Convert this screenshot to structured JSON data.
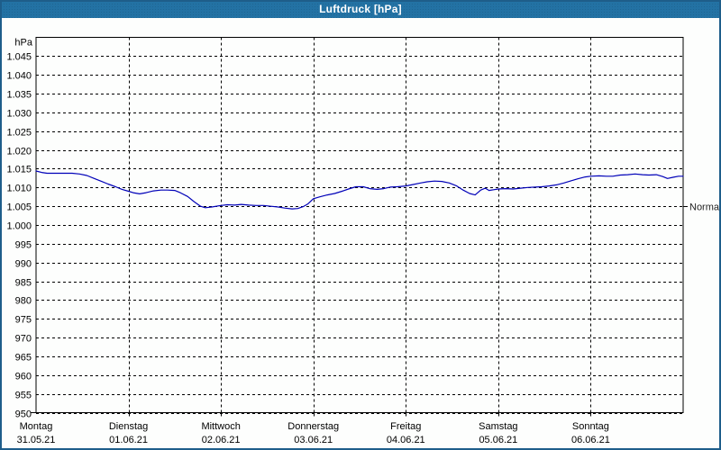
{
  "window": {
    "title": "Luftdruck [hPa]"
  },
  "colors": {
    "titlebar_bg": "#2372a4",
    "window_border": "#1e5d8a",
    "plot_border": "#000000",
    "grid": "#000000",
    "text": "#000000",
    "title_text": "#ffffff",
    "line": "#0000b8"
  },
  "chart_data": {
    "type": "line",
    "title": "Luftdruck [hPa]",
    "unit_label": "hPa",
    "grid": "dashed",
    "legend_position": "none",
    "y_axis": {
      "min": 950,
      "max": 1050,
      "tick_step": 5,
      "ticks": [
        {
          "value": 1045,
          "label": "1.045"
        },
        {
          "value": 1040,
          "label": "1.040"
        },
        {
          "value": 1035,
          "label": "1.035"
        },
        {
          "value": 1030,
          "label": "1.030"
        },
        {
          "value": 1025,
          "label": "1.025"
        },
        {
          "value": 1020,
          "label": "1.020"
        },
        {
          "value": 1015,
          "label": "1.015"
        },
        {
          "value": 1010,
          "label": "1.010"
        },
        {
          "value": 1005,
          "label": "1.005"
        },
        {
          "value": 1000,
          "label": "1.000"
        },
        {
          "value": 995,
          "label": "995"
        },
        {
          "value": 990,
          "label": "990"
        },
        {
          "value": 985,
          "label": "985"
        },
        {
          "value": 980,
          "label": "980"
        },
        {
          "value": 975,
          "label": "975"
        },
        {
          "value": 970,
          "label": "970"
        },
        {
          "value": 965,
          "label": "965"
        },
        {
          "value": 960,
          "label": "960"
        },
        {
          "value": 955,
          "label": "955"
        },
        {
          "value": 950,
          "label": "950"
        }
      ]
    },
    "x_axis": {
      "days": [
        {
          "name": "Montag",
          "date": "31.05.21"
        },
        {
          "name": "Dienstag",
          "date": "01.06.21"
        },
        {
          "name": "Mittwoch",
          "date": "02.06.21"
        },
        {
          "name": "Donnerstag",
          "date": "03.06.21"
        },
        {
          "name": "Freitag",
          "date": "04.06.21"
        },
        {
          "name": "Samstag",
          "date": "05.06.21"
        },
        {
          "name": "Sonntag",
          "date": "06.06.21"
        }
      ]
    },
    "normal_marker": {
      "label": "Normal",
      "value": 1005
    },
    "series": [
      {
        "name": "Luftdruck",
        "color": "#0000b8",
        "x_unit": "days_from_start",
        "points": [
          [
            0.0,
            1014.4
          ],
          [
            0.06,
            1014.0
          ],
          [
            0.12,
            1013.8
          ],
          [
            0.2,
            1013.8
          ],
          [
            0.3,
            1013.8
          ],
          [
            0.39,
            1013.8
          ],
          [
            0.47,
            1013.6
          ],
          [
            0.55,
            1013.2
          ],
          [
            0.62,
            1012.5
          ],
          [
            0.7,
            1011.7
          ],
          [
            0.78,
            1010.9
          ],
          [
            0.86,
            1010.2
          ],
          [
            0.93,
            1009.5
          ],
          [
            1.0,
            1009.0
          ],
          [
            1.05,
            1008.6
          ],
          [
            1.12,
            1008.3
          ],
          [
            1.19,
            1008.6
          ],
          [
            1.27,
            1009.1
          ],
          [
            1.35,
            1009.3
          ],
          [
            1.42,
            1009.3
          ],
          [
            1.5,
            1009.2
          ],
          [
            1.56,
            1008.6
          ],
          [
            1.64,
            1007.6
          ],
          [
            1.71,
            1006.2
          ],
          [
            1.78,
            1005.0
          ],
          [
            1.83,
            1004.6
          ],
          [
            1.9,
            1004.8
          ],
          [
            2.0,
            1005.2
          ],
          [
            2.07,
            1005.4
          ],
          [
            2.15,
            1005.3
          ],
          [
            2.22,
            1005.5
          ],
          [
            2.3,
            1005.3
          ],
          [
            2.38,
            1005.2
          ],
          [
            2.46,
            1005.2
          ],
          [
            2.54,
            1005.0
          ],
          [
            2.62,
            1004.8
          ],
          [
            2.69,
            1004.5
          ],
          [
            2.77,
            1004.3
          ],
          [
            2.83,
            1004.4
          ],
          [
            2.89,
            1004.9
          ],
          [
            2.94,
            1005.6
          ],
          [
            3.0,
            1007.0
          ],
          [
            3.07,
            1007.5
          ],
          [
            3.15,
            1008.0
          ],
          [
            3.23,
            1008.4
          ],
          [
            3.31,
            1009.0
          ],
          [
            3.38,
            1009.6
          ],
          [
            3.46,
            1010.2
          ],
          [
            3.54,
            1010.2
          ],
          [
            3.61,
            1009.7
          ],
          [
            3.69,
            1009.5
          ],
          [
            3.76,
            1009.7
          ],
          [
            3.83,
            1010.1
          ],
          [
            3.91,
            1010.2
          ],
          [
            4.0,
            1010.4
          ],
          [
            4.08,
            1010.8
          ],
          [
            4.16,
            1011.2
          ],
          [
            4.23,
            1011.5
          ],
          [
            4.31,
            1011.7
          ],
          [
            4.39,
            1011.6
          ],
          [
            4.47,
            1011.2
          ],
          [
            4.55,
            1010.4
          ],
          [
            4.62,
            1009.3
          ],
          [
            4.69,
            1008.4
          ],
          [
            4.75,
            1008.0
          ],
          [
            4.81,
            1009.3
          ],
          [
            4.86,
            1009.8
          ],
          [
            4.9,
            1009.2
          ],
          [
            4.95,
            1009.4
          ],
          [
            5.0,
            1009.6
          ],
          [
            5.08,
            1009.7
          ],
          [
            5.16,
            1009.6
          ],
          [
            5.24,
            1009.8
          ],
          [
            5.32,
            1010.0
          ],
          [
            5.4,
            1010.1
          ],
          [
            5.47,
            1010.2
          ],
          [
            5.55,
            1010.4
          ],
          [
            5.63,
            1010.7
          ],
          [
            5.71,
            1011.2
          ],
          [
            5.79,
            1011.8
          ],
          [
            5.86,
            1012.3
          ],
          [
            5.94,
            1012.8
          ],
          [
            6.0,
            1013.0
          ],
          [
            6.09,
            1013.1
          ],
          [
            6.17,
            1013.0
          ],
          [
            6.24,
            1013.0
          ],
          [
            6.32,
            1013.3
          ],
          [
            6.4,
            1013.4
          ],
          [
            6.48,
            1013.6
          ],
          [
            6.56,
            1013.4
          ],
          [
            6.63,
            1013.3
          ],
          [
            6.71,
            1013.4
          ],
          [
            6.78,
            1012.9
          ],
          [
            6.83,
            1012.4
          ],
          [
            6.89,
            1012.7
          ],
          [
            6.95,
            1013.0
          ],
          [
            7.0,
            1013.0
          ]
        ]
      }
    ]
  }
}
